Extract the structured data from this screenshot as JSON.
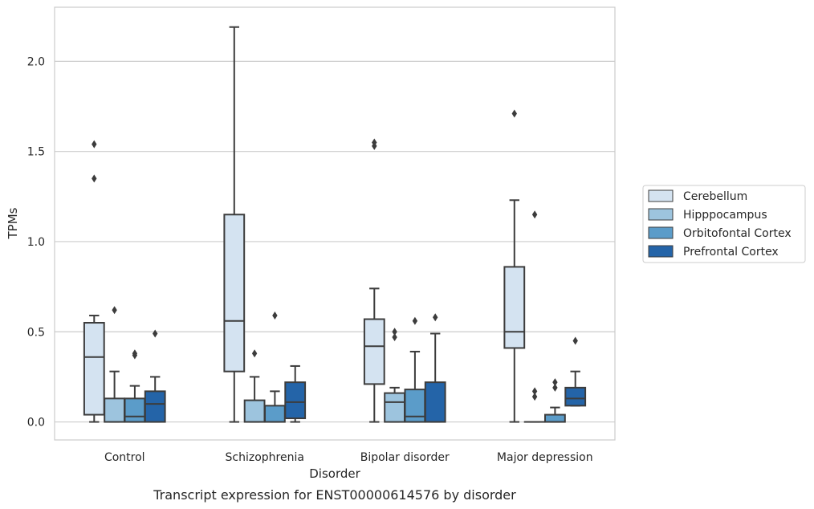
{
  "chart_data": {
    "type": "box",
    "caption": "Transcript expression for ENST00000614576 by disorder",
    "xlabel": "Disorder",
    "ylabel": "TPMs",
    "ylim": [
      -0.1,
      2.3
    ],
    "yticks": [
      0.0,
      0.5,
      1.0,
      1.5,
      2.0
    ],
    "ytick_labels": [
      "0.0",
      "0.5",
      "1.0",
      "1.5",
      "2.0"
    ],
    "grid": "horizontal",
    "legend_position": "right-center",
    "categories": [
      "Control",
      "Schizophrenia",
      "Bipolar disorder",
      "Major depression"
    ],
    "series": [
      {
        "name": "Cerebellum",
        "color": "#d4e3f1",
        "boxes": [
          {
            "whislo": 0.0,
            "q1": 0.04,
            "med": 0.36,
            "q3": 0.55,
            "whishi": 0.59,
            "fliers": [
              1.35,
              1.54
            ]
          },
          {
            "whislo": 0.0,
            "q1": 0.28,
            "med": 0.56,
            "q3": 1.15,
            "whishi": 2.19,
            "fliers": []
          },
          {
            "whislo": 0.0,
            "q1": 0.21,
            "med": 0.42,
            "q3": 0.57,
            "whishi": 0.74,
            "fliers": [
              1.53,
              1.55
            ]
          },
          {
            "whislo": 0.0,
            "q1": 0.41,
            "med": 0.5,
            "q3": 0.86,
            "whishi": 1.23,
            "fliers": [
              1.71
            ]
          }
        ]
      },
      {
        "name": "Hipppocampus",
        "color": "#9dc4de",
        "boxes": [
          {
            "whislo": 0.0,
            "q1": 0.0,
            "med": 0.0,
            "q3": 0.13,
            "whishi": 0.28,
            "fliers": [
              0.62
            ]
          },
          {
            "whislo": 0.0,
            "q1": 0.0,
            "med": 0.0,
            "q3": 0.12,
            "whishi": 0.25,
            "fliers": [
              0.38
            ]
          },
          {
            "whislo": 0.0,
            "q1": 0.0,
            "med": 0.11,
            "q3": 0.16,
            "whishi": 0.19,
            "fliers": [
              0.47,
              0.5
            ]
          },
          {
            "whislo": 0.0,
            "q1": 0.0,
            "med": 0.0,
            "q3": 0.0,
            "whishi": 0.0,
            "fliers": [
              0.14,
              0.17,
              1.15
            ]
          }
        ]
      },
      {
        "name": "Orbitofontal Cortex",
        "color": "#5b9cc9",
        "boxes": [
          {
            "whislo": 0.0,
            "q1": 0.0,
            "med": 0.03,
            "q3": 0.13,
            "whishi": 0.2,
            "fliers": [
              0.37,
              0.38
            ]
          },
          {
            "whislo": 0.0,
            "q1": 0.0,
            "med": 0.0,
            "q3": 0.09,
            "whishi": 0.17,
            "fliers": [
              0.59
            ]
          },
          {
            "whislo": 0.0,
            "q1": 0.0,
            "med": 0.03,
            "q3": 0.18,
            "whishi": 0.39,
            "fliers": [
              0.56
            ]
          },
          {
            "whislo": 0.0,
            "q1": 0.0,
            "med": 0.0,
            "q3": 0.04,
            "whishi": 0.08,
            "fliers": [
              0.19,
              0.22
            ]
          }
        ]
      },
      {
        "name": "Prefrontal Cortex",
        "color": "#2464a8",
        "boxes": [
          {
            "whislo": 0.0,
            "q1": 0.0,
            "med": 0.1,
            "q3": 0.17,
            "whishi": 0.25,
            "fliers": [
              0.49
            ]
          },
          {
            "whislo": 0.0,
            "q1": 0.02,
            "med": 0.11,
            "q3": 0.22,
            "whishi": 0.31,
            "fliers": []
          },
          {
            "whislo": 0.0,
            "q1": 0.0,
            "med": 0.0,
            "q3": 0.22,
            "whishi": 0.49,
            "fliers": [
              0.58
            ]
          },
          {
            "whislo": 0.09,
            "q1": 0.09,
            "med": 0.13,
            "q3": 0.19,
            "whishi": 0.28,
            "fliers": [
              0.45
            ]
          }
        ]
      }
    ]
  },
  "colors": {
    "grid": "#cccccc",
    "frame": "#cccccc",
    "line": "#3c3c3c",
    "text": "#262626"
  }
}
